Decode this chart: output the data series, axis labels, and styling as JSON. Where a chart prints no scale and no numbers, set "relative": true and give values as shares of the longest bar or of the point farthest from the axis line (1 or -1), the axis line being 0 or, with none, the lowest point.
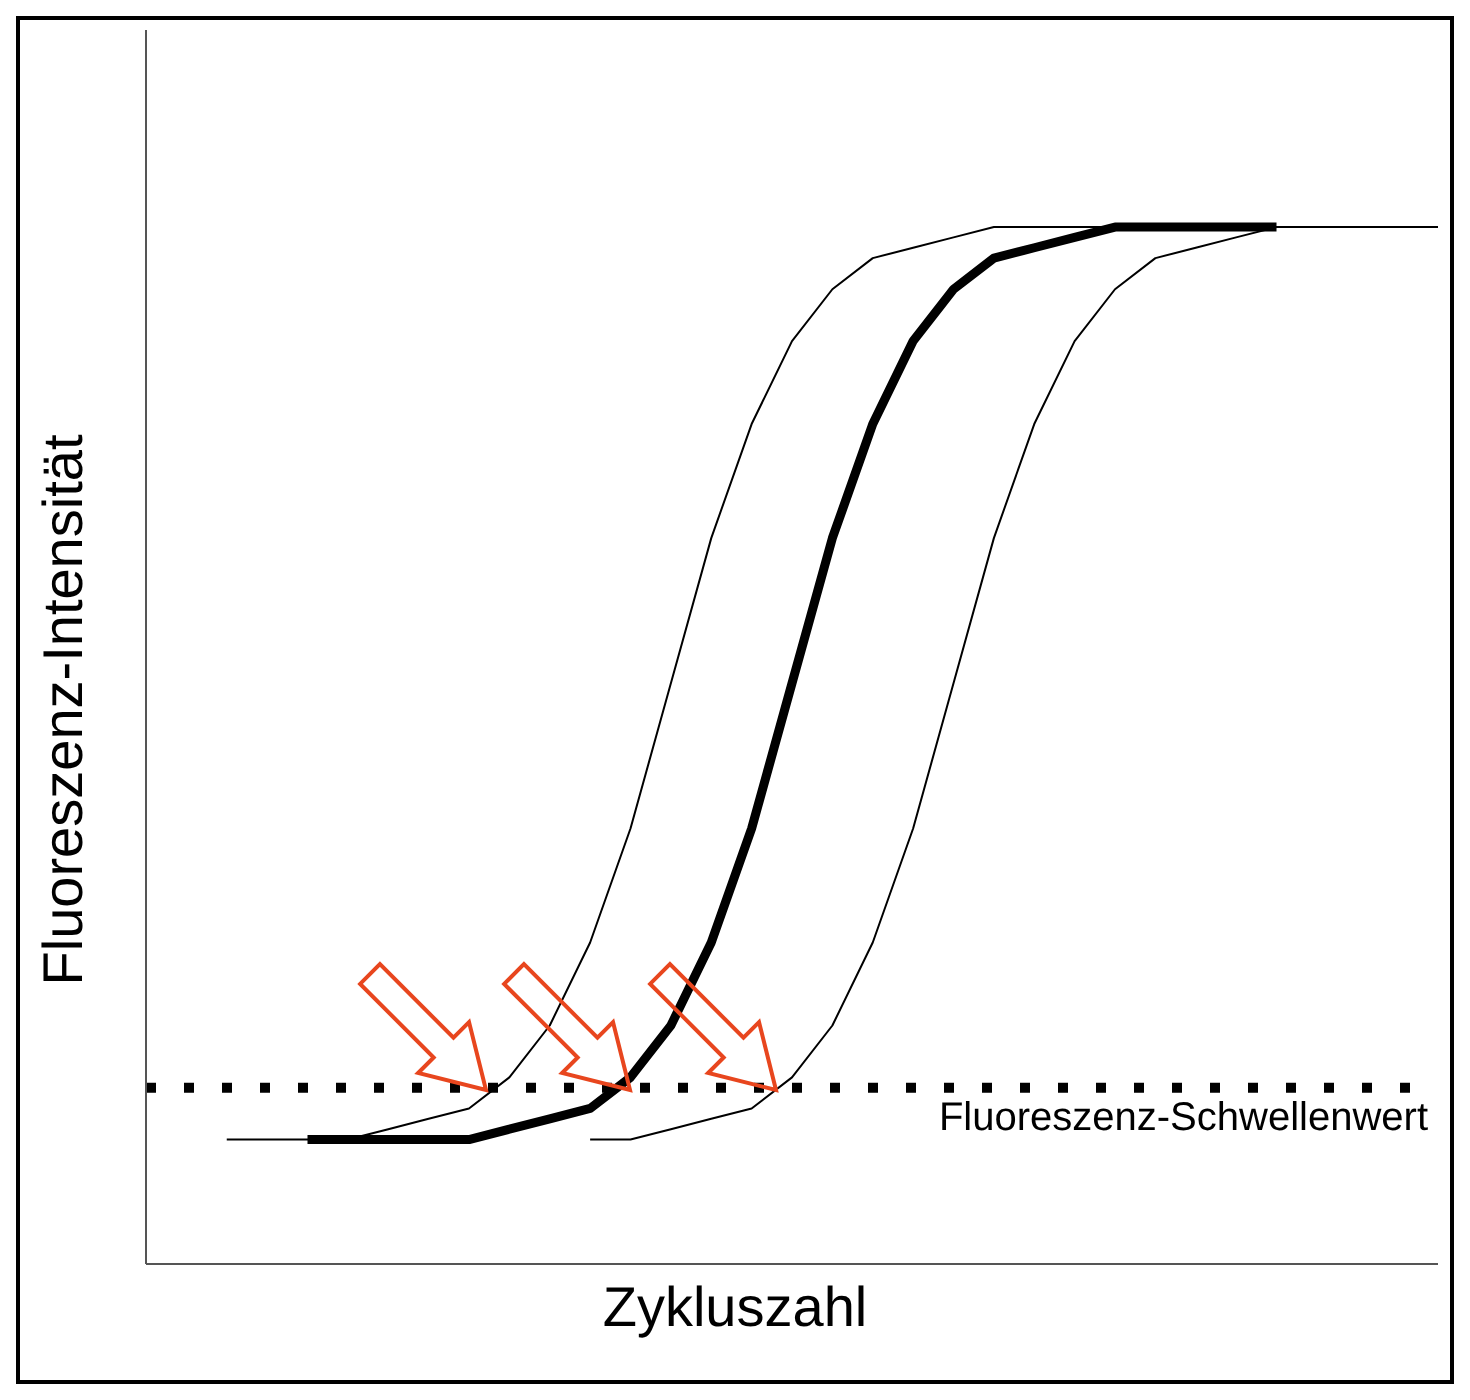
{
  "chart_data": {
    "type": "line",
    "relative": true,
    "xlabel": "Zykluszahl",
    "ylabel": "Fluoreszenz-Intensität",
    "categories": [
      null,
      null,
      null,
      null,
      null,
      null,
      null,
      null,
      null,
      null,
      null,
      null,
      null,
      null,
      null,
      null,
      null,
      null,
      null,
      null,
      null,
      null,
      null,
      null,
      null,
      null,
      null,
      null,
      null,
      null,
      null,
      null,
      null
    ],
    "series": [
      {
        "color": "#000000",
        "values": [
          null,
          null,
          0.12,
          0.12,
          0.12,
          0.12,
          0.13,
          0.14,
          0.15,
          0.18,
          0.23,
          0.31,
          0.42,
          0.56,
          0.7,
          0.81,
          0.89,
          0.94,
          0.97,
          0.98,
          0.99,
          1,
          1,
          1,
          1,
          1,
          1,
          1,
          1,
          1,
          1,
          1,
          1
        ]
      },
      {
        "color": "#000000",
        "values": [
          null,
          null,
          null,
          null,
          0.12,
          0.12,
          0.12,
          0.12,
          0.12,
          0.13,
          0.14,
          0.15,
          0.18,
          0.23,
          0.31,
          0.42,
          0.56,
          0.7,
          0.81,
          0.89,
          0.94,
          0.97,
          0.98,
          0.99,
          1,
          1,
          1,
          1,
          1,
          null,
          null,
          null,
          null
        ]
      },
      {
        "color": "#000000",
        "values": [
          null,
          null,
          null,
          null,
          null,
          null,
          null,
          null,
          null,
          null,
          null,
          0.12,
          0.12,
          0.13,
          0.14,
          0.15,
          0.18,
          0.23,
          0.31,
          0.42,
          0.56,
          0.7,
          0.81,
          0.89,
          0.94,
          0.97,
          0.98,
          0.99,
          1,
          1,
          1,
          1,
          1
        ]
      }
    ],
    "ref_lines": [
      {
        "axis": "y",
        "value": 0.17,
        "label": "Fluoreszenz-Schwellenwert",
        "color": "#000000",
        "line_style": "dotted"
      }
    ],
    "grid": false,
    "legend": false,
    "tick_labels": false,
    "marker": "none",
    "line_style": "solid"
  }
}
